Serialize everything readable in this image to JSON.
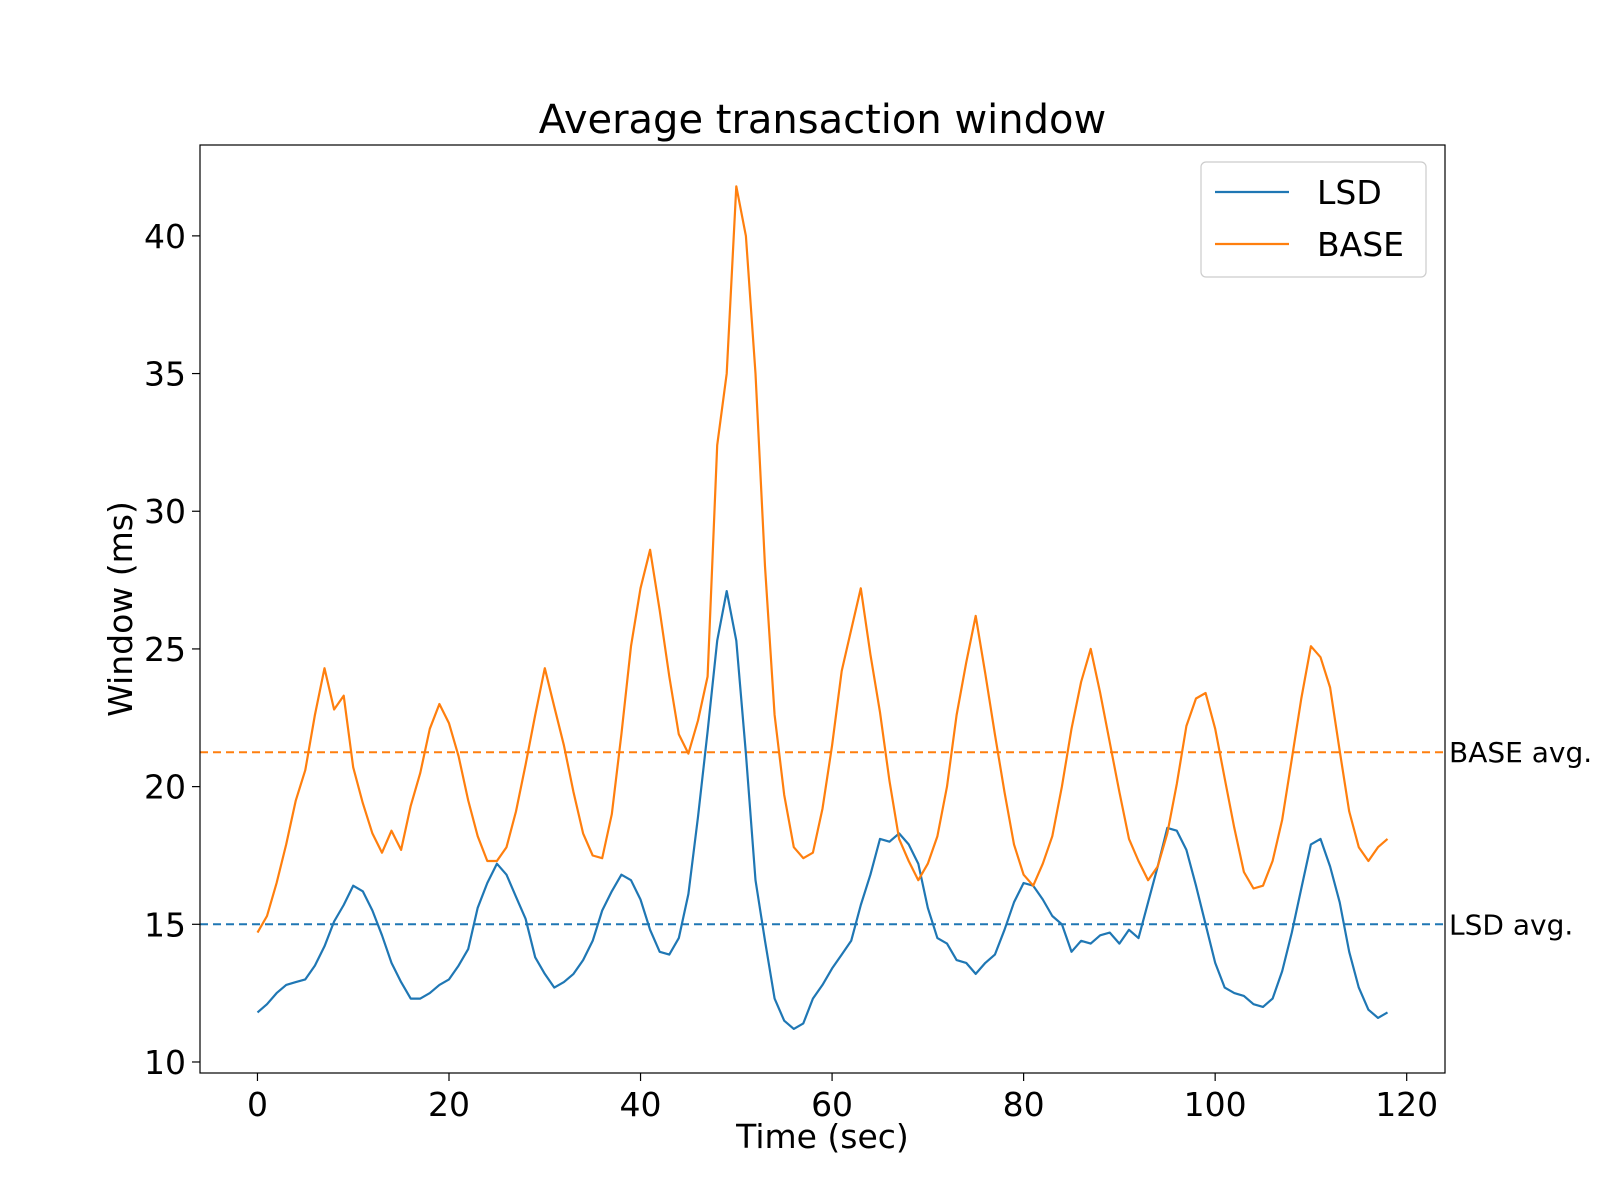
{
  "chart_data": {
    "type": "line",
    "title": "Average transaction window",
    "xlabel": "Time (sec)",
    "ylabel": "Window (ms)",
    "xlim": [
      -6,
      124
    ],
    "ylim": [
      9.6,
      43.3
    ],
    "xticks": [
      0,
      20,
      40,
      60,
      80,
      100,
      120
    ],
    "yticks": [
      10,
      15,
      20,
      25,
      30,
      35,
      40
    ],
    "grid": false,
    "legend_position": "top-right",
    "x": [
      0,
      1,
      2,
      3,
      4,
      5,
      6,
      7,
      8,
      9,
      10,
      11,
      12,
      13,
      14,
      15,
      16,
      17,
      18,
      19,
      20,
      21,
      22,
      23,
      24,
      25,
      26,
      27,
      28,
      29,
      30,
      31,
      32,
      33,
      34,
      35,
      36,
      37,
      38,
      39,
      40,
      41,
      42,
      43,
      44,
      45,
      46,
      47,
      48,
      49,
      50,
      51,
      52,
      53,
      54,
      55,
      56,
      57,
      58,
      59,
      60,
      61,
      62,
      63,
      64,
      65,
      66,
      67,
      68,
      69,
      70,
      71,
      72,
      73,
      74,
      75,
      76,
      77,
      78,
      79,
      80,
      81,
      82,
      83,
      84,
      85,
      86,
      87,
      88,
      89,
      90,
      91,
      92,
      93,
      94,
      95,
      96,
      97,
      98,
      99,
      100,
      101,
      102,
      103,
      104,
      105,
      106,
      107,
      108,
      109,
      110,
      111,
      112,
      113,
      114,
      115,
      116,
      117,
      118
    ],
    "series": [
      {
        "name": "LSD",
        "color": "#1f77b4",
        "values": [
          11.8,
          12.1,
          12.5,
          12.8,
          12.9,
          13.0,
          13.5,
          14.2,
          15.1,
          15.7,
          16.4,
          16.2,
          15.5,
          14.6,
          13.6,
          12.9,
          12.3,
          12.3,
          12.5,
          12.8,
          13.0,
          13.5,
          14.1,
          15.6,
          16.5,
          17.2,
          16.8,
          16.0,
          15.2,
          13.8,
          13.2,
          12.7,
          12.9,
          13.2,
          13.7,
          14.4,
          15.5,
          16.2,
          16.8,
          16.6,
          15.9,
          14.8,
          14.0,
          13.9,
          14.5,
          16.1,
          18.9,
          22.0,
          25.3,
          27.1,
          25.3,
          21.2,
          16.6,
          14.4,
          12.3,
          11.5,
          11.2,
          11.4,
          12.3,
          12.8,
          13.4,
          13.9,
          14.4,
          15.7,
          16.8,
          18.1,
          18.0,
          18.3,
          17.9,
          17.2,
          15.6,
          14.5,
          14.3,
          13.7,
          13.6,
          13.2,
          13.6,
          13.9,
          14.8,
          15.8,
          16.5,
          16.4,
          15.9,
          15.3,
          15.0,
          14.0,
          14.4,
          14.3,
          14.6,
          14.7,
          14.3,
          14.8,
          14.5,
          15.8,
          17.1,
          18.5,
          18.4,
          17.7,
          16.4,
          15.0,
          13.6,
          12.7,
          12.5,
          12.4,
          12.1,
          12.0,
          12.3,
          13.3,
          14.7,
          16.3,
          17.9,
          18.1,
          17.1,
          15.8,
          14.0,
          12.7,
          11.9,
          11.6,
          11.8
        ]
      },
      {
        "name": "BASE",
        "color": "#ff7f0e",
        "values": [
          14.7,
          15.3,
          16.5,
          17.9,
          19.5,
          20.6,
          22.6,
          24.3,
          22.8,
          23.3,
          20.7,
          19.4,
          18.3,
          17.6,
          18.4,
          17.7,
          19.3,
          20.5,
          22.1,
          23.0,
          22.3,
          21.1,
          19.5,
          18.2,
          17.3,
          17.3,
          17.8,
          19.1,
          20.8,
          22.6,
          24.3,
          22.9,
          21.5,
          19.8,
          18.3,
          17.5,
          17.4,
          19.0,
          21.9,
          25.1,
          27.2,
          28.6,
          26.4,
          24.0,
          21.9,
          21.2,
          22.4,
          24.0,
          32.4,
          35.0,
          41.8,
          40.0,
          35.0,
          28.0,
          22.6,
          19.7,
          17.8,
          17.4,
          17.6,
          19.2,
          21.5,
          24.2,
          25.7,
          27.2,
          24.8,
          22.7,
          20.2,
          18.1,
          17.3,
          16.6,
          17.2,
          18.2,
          20.0,
          22.6,
          24.5,
          26.2,
          24.1,
          21.9,
          19.8,
          17.9,
          16.8,
          16.4,
          17.2,
          18.2,
          20.0,
          22.1,
          23.8,
          25.0,
          23.4,
          21.6,
          19.8,
          18.1,
          17.3,
          16.6,
          17.1,
          18.3,
          20.1,
          22.2,
          23.2,
          23.4,
          22.1,
          20.3,
          18.5,
          16.9,
          16.3,
          16.4,
          17.3,
          18.8,
          21.0,
          23.2,
          25.1,
          24.7,
          23.6,
          21.3,
          19.1,
          17.8,
          17.3,
          17.8,
          18.1
        ]
      }
    ],
    "reference_lines": [
      {
        "label": "BASE avg.",
        "value": 21.25,
        "color": "#ff7f0e"
      },
      {
        "label": "LSD avg.",
        "value": 15.0,
        "color": "#1f77b4"
      }
    ]
  }
}
